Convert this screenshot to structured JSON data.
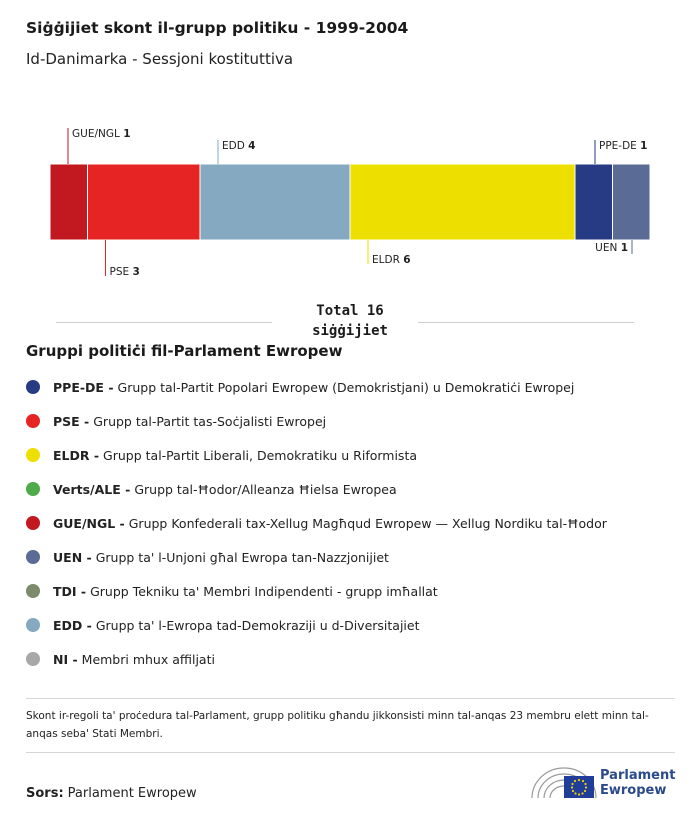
{
  "title": "Siġġijiet skont il-grupp politiku - 1999-2004",
  "subtitle": "Id-Danimarka - Sessjoni kostituttiva",
  "chart_data": {
    "type": "bar",
    "orientation": "stacked-horizontal",
    "categories": [
      "GUE/NGL",
      "PSE",
      "EDD",
      "ELDR",
      "PPE-DE",
      "UEN"
    ],
    "values": [
      1,
      3,
      4,
      6,
      1,
      1
    ],
    "colors": [
      "#c1191f",
      "#e52423",
      "#84a9c0",
      "#ede000",
      "#273a84",
      "#5a6b96"
    ],
    "label_side": [
      "top",
      "bottom",
      "top",
      "bottom",
      "top",
      "bottom"
    ],
    "total_label": "Total 16 siġġijiet"
  },
  "legend": {
    "title": "Gruppi politiċi fil-Parlament Ewropew",
    "items": [
      {
        "abbr": "PPE-DE -",
        "desc": "Grupp tal-Partit Popolari Ewropew (Demokristjani) u Demokratiċi Ewropej",
        "color": "#273a84"
      },
      {
        "abbr": "PSE -",
        "desc": "Grupp tal-Partit tas-Soċjalisti Ewropej",
        "color": "#e52423"
      },
      {
        "abbr": "ELDR -",
        "desc": "Grupp tal-Partit Liberali, Demokratiku u Riformista",
        "color": "#ede000"
      },
      {
        "abbr": "Verts/ALE -",
        "desc": "Grupp tal-Ħodor/Alleanza Ħielsa Ewropea",
        "color": "#4faa4a"
      },
      {
        "abbr": "GUE/NGL -",
        "desc": "Grupp Konfederali tax-Xellug Magħqud Ewropew — Xellug Nordiku tal-Ħodor",
        "color": "#c1191f"
      },
      {
        "abbr": "UEN -",
        "desc": "Grupp ta' l-Unjoni għal Ewropa tan-Nazzjonijiet",
        "color": "#5a6b96"
      },
      {
        "abbr": "TDI -",
        "desc": "Grupp Tekniku ta' Membri Indipendenti - grupp imħallat",
        "color": "#7d8b6a"
      },
      {
        "abbr": "EDD -",
        "desc": "Grupp ta' l-Ewropa tad-Demokraziji u d-Diversitajiet",
        "color": "#84a9c0"
      },
      {
        "abbr": "NI -",
        "desc": "Membri mhux affiljati",
        "color": "#a8a8a8"
      }
    ]
  },
  "note": "Skont ir-regoli ta' proċedura tal-Parlament, grupp politiku għandu jikkonsisti minn tal-anqas 23 membru elett minn tal-anqas seba' Stati Membri.",
  "source": {
    "label": "Sors:",
    "value": "Parlament Ewropew"
  },
  "logo": {
    "line1": "Parlament",
    "line2": "Ewropew"
  }
}
